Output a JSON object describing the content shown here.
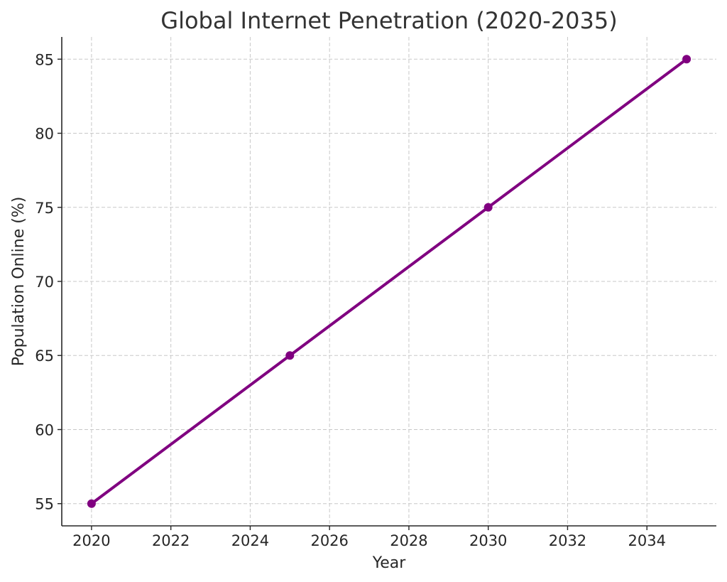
{
  "chart_data": {
    "type": "line",
    "title": "Global Internet Penetration (2020-2035)",
    "xlabel": "Year",
    "ylabel": "Population Online (%)",
    "x": [
      2020,
      2025,
      2030,
      2035
    ],
    "series": [
      {
        "values": [
          55,
          65,
          75,
          85
        ],
        "color": "#800080",
        "marker": "circle"
      }
    ],
    "xlim": [
      2019.25,
      2035.75
    ],
    "ylim": [
      53.5,
      86.5
    ],
    "xticks": [
      2020,
      2022,
      2024,
      2026,
      2028,
      2030,
      2032,
      2034
    ],
    "yticks": [
      55,
      60,
      65,
      70,
      75,
      80,
      85
    ],
    "grid": true,
    "legend": "none"
  }
}
